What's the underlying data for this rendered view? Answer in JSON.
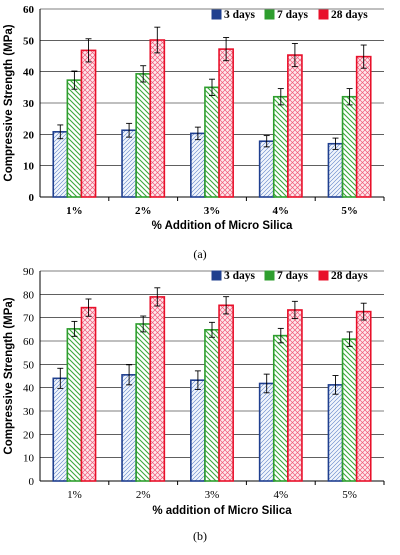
{
  "captions": [
    "(a)",
    "(b)"
  ],
  "colors": {
    "blue": "#1f3f8f",
    "green": "#2e9e2e",
    "red": "#e8102a"
  },
  "chart_data": [
    {
      "type": "bar",
      "caption": "(a)",
      "categories": [
        "1%",
        "2%",
        "3%",
        "4%",
        "5%"
      ],
      "series": [
        {
          "name": "3 days",
          "values": [
            20.8,
            21.3,
            20.3,
            17.8,
            17.0
          ],
          "errors": [
            2.2,
            2.2,
            2.0,
            1.8,
            1.8
          ],
          "color_key": "blue",
          "pattern": "diag-right"
        },
        {
          "name": "7 days",
          "values": [
            37.3,
            39.3,
            35.0,
            32.0,
            32.0
          ],
          "errors": [
            2.9,
            2.6,
            2.6,
            2.6,
            2.6
          ],
          "color_key": "green",
          "pattern": "diag-left"
        },
        {
          "name": "28 days",
          "values": [
            46.8,
            50.1,
            47.2,
            45.3,
            44.8
          ],
          "errors": [
            3.7,
            4.1,
            3.7,
            3.7,
            3.7
          ],
          "color_key": "red",
          "pattern": "crosshatch"
        }
      ],
      "xlabel": "% Addition of Micro Silica",
      "ylabel": "Compressive Strength (MPa)",
      "ylim": [
        0,
        60
      ],
      "yticks": [
        0,
        10,
        20,
        30,
        40,
        50,
        60
      ],
      "grid": "horizontal",
      "legend": "top-right",
      "tick_style": "bold-serif"
    },
    {
      "type": "bar",
      "caption": "(b)",
      "categories": [
        "1%",
        "2%",
        "3%",
        "4%",
        "5%"
      ],
      "series": [
        {
          "name": "3 days",
          "values": [
            44.0,
            45.5,
            43.2,
            41.8,
            41.2
          ],
          "errors": [
            4.3,
            4.3,
            4.0,
            4.0,
            4.0
          ],
          "color_key": "blue",
          "pattern": "diag-right"
        },
        {
          "name": "7 days",
          "values": [
            65.2,
            67.3,
            64.8,
            62.3,
            60.8
          ],
          "errors": [
            3.2,
            3.4,
            3.2,
            3.1,
            3.1
          ],
          "color_key": "green",
          "pattern": "diag-left"
        },
        {
          "name": "28 days",
          "values": [
            74.3,
            78.9,
            75.3,
            73.3,
            72.6
          ],
          "errors": [
            3.7,
            3.9,
            3.7,
            3.7,
            3.6
          ],
          "color_key": "red",
          "pattern": "crosshatch"
        }
      ],
      "xlabel": "% addition of Micro Silica",
      "ylabel": "Compressive Strength (MPa)",
      "ylim": [
        0,
        90
      ],
      "yticks": [
        0,
        10,
        20,
        30,
        40,
        50,
        60,
        70,
        80,
        90
      ],
      "grid": "horizontal",
      "legend": "top-right",
      "tick_style": "regular-serif"
    }
  ]
}
